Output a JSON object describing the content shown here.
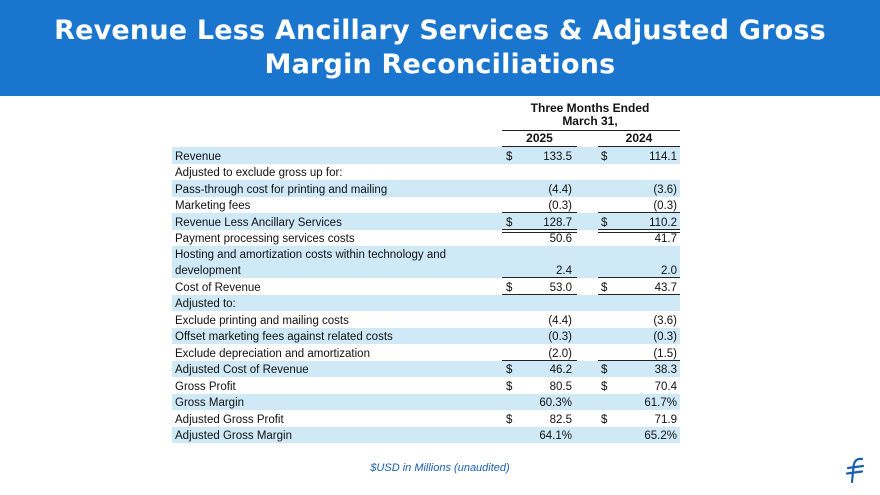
{
  "header": {
    "title_line1": "Revenue Less Ancillary Services & Adjusted Gross",
    "title_line2": "Margin Reconciliations"
  },
  "table": {
    "period_line1": "Three Months Ended",
    "period_line2": "March 31,",
    "col1": "2025",
    "col2": "2024",
    "rows": [
      {
        "label": "Revenue",
        "d1": "$",
        "v1": "133.5",
        "d2": "$",
        "v2": "114.1"
      },
      {
        "label": "Adjusted to exclude gross up for:",
        "d1": "",
        "v1": "",
        "d2": "",
        "v2": ""
      },
      {
        "label": "Pass-through cost for printing and mailing",
        "d1": "",
        "v1": "(4.4)",
        "d2": "",
        "v2": "(3.6)"
      },
      {
        "label": "Marketing fees",
        "d1": "",
        "v1": "(0.3)",
        "d2": "",
        "v2": "(0.3)"
      },
      {
        "label": "Revenue Less Ancillary Services",
        "d1": "$",
        "v1": "128.7",
        "d2": "$",
        "v2": "110.2"
      },
      {
        "label": "Payment processing services costs",
        "d1": "",
        "v1": "50.6",
        "d2": "",
        "v2": "41.7"
      },
      {
        "label": "Hosting and amortization costs within technology and",
        "label2": "development",
        "d1": "",
        "v1": "2.4",
        "d2": "",
        "v2": "2.0"
      },
      {
        "label": "Cost of Revenue",
        "d1": "$",
        "v1": "53.0",
        "d2": "$",
        "v2": "43.7"
      },
      {
        "label": "Adjusted to:",
        "d1": "",
        "v1": "",
        "d2": "",
        "v2": ""
      },
      {
        "label": "Exclude printing and mailing costs",
        "d1": "",
        "v1": "(4.4)",
        "d2": "",
        "v2": "(3.6)"
      },
      {
        "label": "Offset marketing fees against related costs",
        "d1": "",
        "v1": "(0.3)",
        "d2": "",
        "v2": "(0.3)"
      },
      {
        "label": "Exclude depreciation and amortization",
        "d1": "",
        "v1": "(2.0)",
        "d2": "",
        "v2": "(1.5)"
      },
      {
        "label": "Adjusted Cost of Revenue",
        "d1": "$",
        "v1": "46.2",
        "d2": "$",
        "v2": "38.3"
      },
      {
        "label": "Gross Profit",
        "d1": "$",
        "v1": "80.5",
        "d2": "$",
        "v2": "70.4"
      },
      {
        "label": "Gross Margin",
        "d1": "",
        "v1": "60.3%",
        "d2": "",
        "v2": "61.7%"
      },
      {
        "label": "Adjusted Gross Profit",
        "d1": "$",
        "v1": "82.5",
        "d2": "$",
        "v2": "71.9"
      },
      {
        "label": "Adjusted Gross Margin",
        "d1": "",
        "v1": "64.1%",
        "d2": "",
        "v2": "65.2%"
      }
    ]
  },
  "footer": {
    "note": "$USD in Millions (unaudited)"
  },
  "colors": {
    "header_bg": "#1a75cf",
    "row_shade": "#cfe9f7",
    "accent": "#1a5fb4"
  },
  "icons": {
    "logo": "flywire-logo-icon"
  }
}
